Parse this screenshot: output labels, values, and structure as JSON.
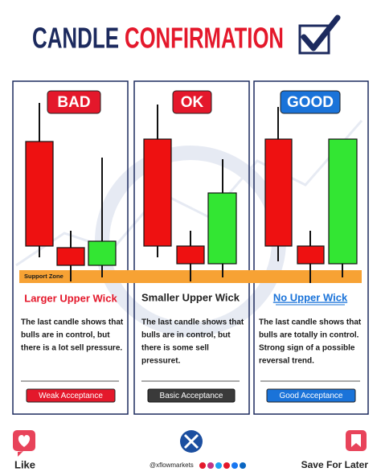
{
  "title_part1": "CANDLE",
  "title_part2": "CONFIRMATION",
  "support_zone": "Support Zone",
  "panels": [
    {
      "badge": "BAD",
      "heading": "Larger Upper Wick",
      "body": [
        "The last candle shows that",
        "bulls are in control, but",
        "there is a lot sell pressure."
      ],
      "button": "Weak Acceptance"
    },
    {
      "badge": "OK",
      "heading": "Smaller Upper Wick",
      "body": [
        "The last candle shows that",
        "bulls are in control, but",
        "there is some sell",
        "pressuret."
      ],
      "button": "Basic Acceptance"
    },
    {
      "badge": "GOOD",
      "heading": "No Upper Wick",
      "body": [
        "The last candle shows that",
        "bulls are totally in control.",
        "Strong sign of a possible",
        "reversal trend."
      ],
      "button": "Good Acceptance"
    }
  ],
  "footer": {
    "like": "Like",
    "handle": "@xflowmarkets",
    "save": "Save For Later"
  }
}
